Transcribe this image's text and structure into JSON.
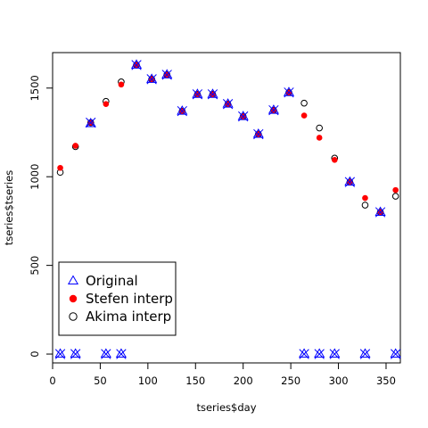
{
  "chart_data": {
    "type": "scatter",
    "title": "",
    "xlabel": "tseries$day",
    "ylabel": "tseries$tseries",
    "xlim": [
      0,
      365
    ],
    "ylim": [
      -50,
      1700
    ],
    "x_ticks": [
      0,
      50,
      100,
      150,
      200,
      250,
      300,
      350
    ],
    "y_ticks": [
      0,
      500,
      1000,
      1500
    ],
    "grid": false,
    "legend": {
      "placement": "bottom-left",
      "entries": [
        "Original",
        "Stefen interp",
        "Akima interp"
      ]
    },
    "colors": {
      "original": "#0000ff",
      "stefen": "#ff0000",
      "akima": "#000000"
    },
    "series": [
      {
        "name": "Original",
        "marker": "triangle",
        "x": [
          8,
          24,
          40,
          56,
          72,
          88,
          104,
          120,
          136,
          152,
          168,
          184,
          200,
          216,
          232,
          248,
          264,
          280,
          296,
          312,
          328,
          344,
          360
        ],
        "y": [
          0,
          0,
          1300,
          0,
          0,
          1630,
          1550,
          1575,
          1370,
          1465,
          1465,
          1410,
          1340,
          1240,
          1375,
          1475,
          0,
          0,
          0,
          970,
          0,
          800,
          0
        ]
      },
      {
        "name": "Original",
        "marker": "x",
        "x": [
          8,
          24,
          40,
          56,
          72,
          88,
          104,
          120,
          136,
          152,
          168,
          184,
          200,
          216,
          232,
          248,
          264,
          280,
          296,
          312,
          328,
          344,
          360
        ],
        "y": [
          0,
          0,
          1305,
          0,
          0,
          1630,
          1550,
          1575,
          1370,
          1465,
          1465,
          1410,
          1340,
          1240,
          1375,
          1475,
          0,
          0,
          0,
          970,
          0,
          800,
          0
        ]
      },
      {
        "name": "Stefen interp",
        "marker": "filled-circle",
        "x": [
          8,
          24,
          40,
          56,
          72,
          88,
          104,
          120,
          136,
          152,
          168,
          184,
          200,
          216,
          232,
          248,
          264,
          280,
          296,
          312,
          328,
          344,
          360
        ],
        "y": [
          1050,
          1175,
          1305,
          1410,
          1520,
          1630,
          1550,
          1575,
          1370,
          1465,
          1465,
          1410,
          1340,
          1240,
          1375,
          1475,
          1345,
          1220,
          1095,
          970,
          880,
          800,
          925
        ]
      },
      {
        "name": "Akima interp",
        "marker": "open-circle",
        "x": [
          8,
          24,
          40,
          56,
          72,
          88,
          104,
          120,
          136,
          152,
          168,
          184,
          200,
          216,
          232,
          248,
          264,
          280,
          296,
          312,
          328,
          344,
          360
        ],
        "y": [
          1025,
          1170,
          1305,
          1425,
          1535,
          1630,
          1550,
          1575,
          1370,
          1465,
          1465,
          1410,
          1340,
          1240,
          1375,
          1475,
          1415,
          1275,
          1105,
          970,
          840,
          800,
          890
        ]
      }
    ]
  }
}
